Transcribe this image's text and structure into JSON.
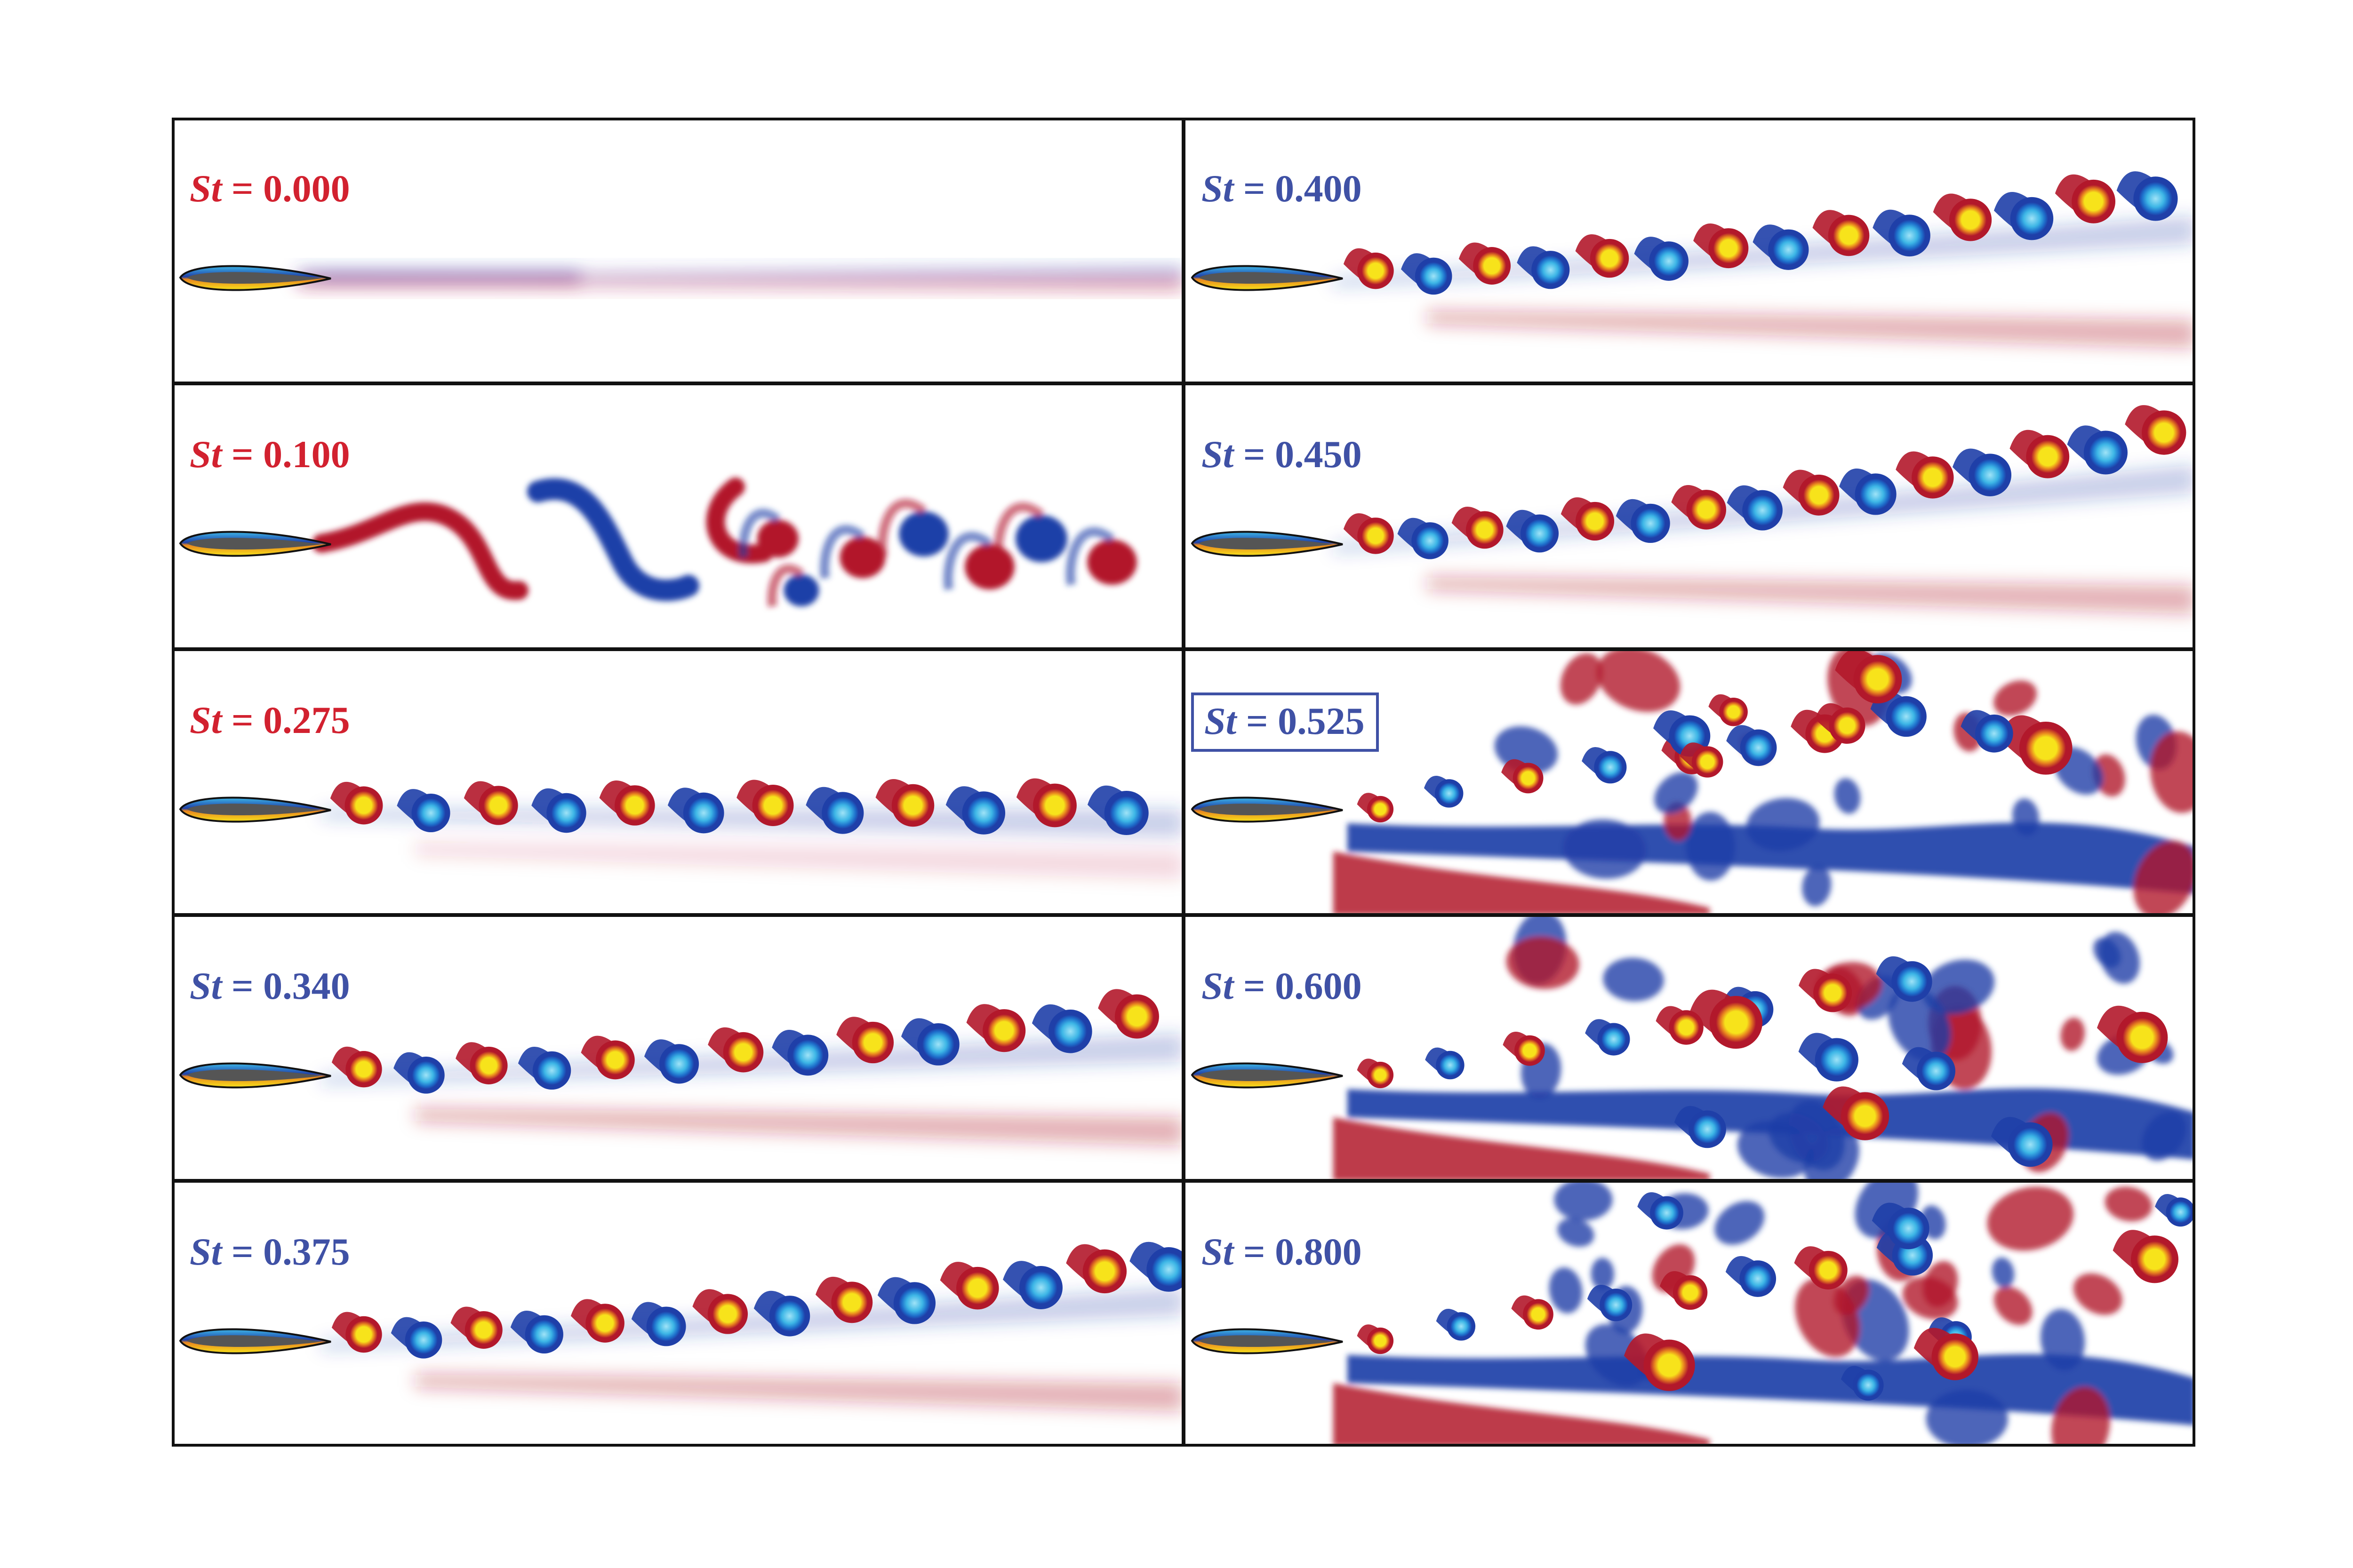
{
  "colors": {
    "label_red": "#D2212F",
    "label_blue": "#3F51A5",
    "vortex_red": "#B2182B",
    "vortex_blue": "#1F3FA8",
    "vortex_yellow": "#F7E31B",
    "vortex_cyan": "#3DB6E6",
    "airfoil": "#555555",
    "frame": "#111111"
  },
  "icons": {
    "airfoil": "airfoil-shape"
  },
  "panels": [
    {
      "label": "0.000",
      "label_color": "red",
      "boxed": false,
      "wake_type": "steady"
    },
    {
      "label": "0.100",
      "label_color": "red",
      "boxed": false,
      "wake_type": "large-vortex-street"
    },
    {
      "label": "0.275",
      "label_color": "red",
      "boxed": false,
      "wake_type": "straight-street"
    },
    {
      "label": "0.340",
      "label_color": "blue",
      "boxed": false,
      "wake_type": "deflected-street"
    },
    {
      "label": "0.375",
      "label_color": "blue",
      "boxed": false,
      "wake_type": "deflected-street"
    },
    {
      "label": "0.400",
      "label_color": "blue",
      "boxed": false,
      "wake_type": "deflected-street"
    },
    {
      "label": "0.450",
      "label_color": "blue",
      "boxed": false,
      "wake_type": "deflected-street"
    },
    {
      "label": "0.525",
      "label_color": "blue",
      "boxed": true,
      "wake_type": "chaotic"
    },
    {
      "label": "0.600",
      "label_color": "blue",
      "boxed": false,
      "wake_type": "chaotic"
    },
    {
      "label": "0.800",
      "label_color": "blue",
      "boxed": false,
      "wake_type": "chaotic"
    }
  ],
  "label_prefix": "St",
  "label_equals": " = "
}
